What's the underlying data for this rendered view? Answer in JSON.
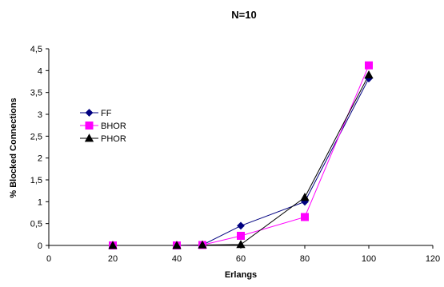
{
  "chart_data": {
    "type": "line",
    "title": "N=10",
    "xlabel": "Erlangs",
    "ylabel": "% Blocked Connections",
    "xlim": [
      0,
      120
    ],
    "ylim": [
      0,
      4.5
    ],
    "x_ticks": [
      "0",
      "20",
      "40",
      "60",
      "80",
      "100",
      "120"
    ],
    "y_ticks": [
      "0",
      "0,5",
      "1",
      "1,5",
      "2",
      "2,5",
      "3",
      "3,5",
      "4",
      "4,5"
    ],
    "grid": false,
    "legend_position": "left-middle",
    "series": [
      {
        "name": "FF",
        "color": "#000080",
        "marker": "diamond",
        "x": [
          20,
          40,
          48,
          60,
          80,
          100
        ],
        "y": [
          0,
          0,
          0.01,
          0.45,
          1.0,
          3.82
        ]
      },
      {
        "name": "BHOR",
        "color": "#ff00ff",
        "marker": "square",
        "x": [
          20,
          40,
          48,
          60,
          80,
          100
        ],
        "y": [
          0,
          0,
          0.01,
          0.22,
          0.65,
          4.12
        ]
      },
      {
        "name": "PHOR",
        "color": "#000000",
        "marker": "triangle",
        "x": [
          20,
          40,
          48,
          60,
          80,
          100
        ],
        "y": [
          0,
          0,
          0.01,
          0.02,
          1.1,
          3.9
        ]
      }
    ]
  }
}
